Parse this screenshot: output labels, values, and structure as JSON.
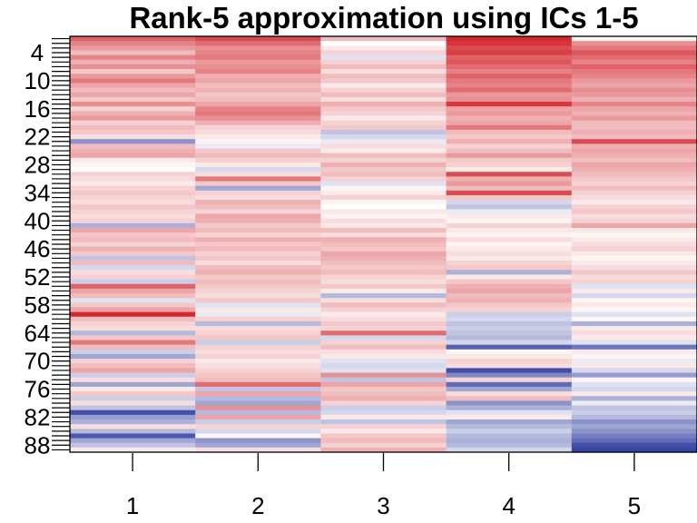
{
  "chart_data": {
    "type": "heatmap",
    "title": "Rank-5 approximation using ICs 1-5",
    "xlabel": "",
    "ylabel": "",
    "columns": [
      "1",
      "2",
      "3",
      "4",
      "5"
    ],
    "n_rows": 89,
    "row_tick_labels": [
      "4",
      "10",
      "16",
      "22",
      "28",
      "34",
      "40",
      "46",
      "52",
      "58",
      "64",
      "70",
      "76",
      "82",
      "88"
    ],
    "row_tick_values": [
      4,
      10,
      16,
      22,
      28,
      34,
      40,
      46,
      52,
      58,
      64,
      70,
      76,
      82,
      88
    ],
    "value_range": [
      -1,
      1
    ],
    "color_scale": {
      "low": "#2c3b9e",
      "mid": "#ffffff",
      "high": "#d11e26"
    },
    "grid": false,
    "legend": "none",
    "values": [
      [
        0.7,
        0.8,
        0.3,
        0.95,
        0.05
      ],
      [
        0.55,
        0.65,
        0.0,
        0.9,
        0.5
      ],
      [
        0.45,
        0.5,
        0.1,
        0.8,
        0.6
      ],
      [
        0.3,
        0.55,
        0.2,
        0.85,
        0.75
      ],
      [
        0.55,
        0.6,
        -0.15,
        0.7,
        0.65
      ],
      [
        0.35,
        0.45,
        0.2,
        0.75,
        0.55
      ],
      [
        0.5,
        0.5,
        0.3,
        0.65,
        0.7
      ],
      [
        0.25,
        0.55,
        0.15,
        0.55,
        0.6
      ],
      [
        0.45,
        0.35,
        0.3,
        0.7,
        0.55
      ],
      [
        0.6,
        0.4,
        0.25,
        0.6,
        0.45
      ],
      [
        0.4,
        0.3,
        0.1,
        0.55,
        0.4
      ],
      [
        0.3,
        0.35,
        0.2,
        0.65,
        0.5
      ],
      [
        0.4,
        0.25,
        0.3,
        0.45,
        0.45
      ],
      [
        0.25,
        0.3,
        0.15,
        0.5,
        0.35
      ],
      [
        0.5,
        0.4,
        0.35,
        0.9,
        0.55
      ],
      [
        0.2,
        0.55,
        0.25,
        0.4,
        0.4
      ],
      [
        0.35,
        0.6,
        0.2,
        0.45,
        0.35
      ],
      [
        0.45,
        0.5,
        0.1,
        0.35,
        0.45
      ],
      [
        0.2,
        0.35,
        0.2,
        0.4,
        0.3
      ],
      [
        0.3,
        0.2,
        0.25,
        0.6,
        0.3
      ],
      [
        0.25,
        0.15,
        -0.3,
        0.3,
        0.35
      ],
      [
        0.15,
        0.1,
        -0.2,
        0.25,
        0.3
      ],
      [
        -0.55,
        0.05,
        -0.1,
        0.35,
        0.8
      ],
      [
        0.3,
        -0.1,
        0.15,
        0.2,
        0.35
      ],
      [
        0.35,
        0.25,
        0.1,
        0.3,
        0.4
      ],
      [
        0.4,
        0.3,
        0.3,
        0.45,
        0.35
      ],
      [
        0.1,
        0.2,
        0.2,
        0.25,
        0.3
      ],
      [
        0.05,
        0.1,
        0.35,
        0.2,
        0.4
      ],
      [
        0.0,
        -0.2,
        0.25,
        0.1,
        0.35
      ],
      [
        0.2,
        0.15,
        0.3,
        0.8,
        0.3
      ],
      [
        0.15,
        0.6,
        0.2,
        0.35,
        0.25
      ],
      [
        0.1,
        0.25,
        -0.15,
        0.45,
        0.2
      ],
      [
        0.2,
        -0.45,
        0.05,
        0.3,
        0.3
      ],
      [
        0.25,
        0.2,
        0.1,
        0.8,
        0.2
      ],
      [
        0.2,
        0.15,
        0.2,
        0.25,
        0.15
      ],
      [
        0.15,
        0.35,
        0.05,
        -0.2,
        0.1
      ],
      [
        0.25,
        0.3,
        0.0,
        -0.3,
        0.2
      ],
      [
        0.2,
        0.2,
        0.1,
        -0.1,
        0.25
      ],
      [
        0.15,
        0.4,
        0.05,
        0.1,
        0.15
      ],
      [
        0.2,
        0.35,
        0.15,
        0.05,
        0.2
      ],
      [
        -0.4,
        0.25,
        0.1,
        0.2,
        0.4
      ],
      [
        0.4,
        0.3,
        0.3,
        0.1,
        0.1
      ],
      [
        0.25,
        0.2,
        0.15,
        0.05,
        0.05
      ],
      [
        0.3,
        0.35,
        0.35,
        0.15,
        0.1
      ],
      [
        0.2,
        0.25,
        0.3,
        0.05,
        0.15
      ],
      [
        0.35,
        0.3,
        0.25,
        0.1,
        0.2
      ],
      [
        0.25,
        0.2,
        0.4,
        0.15,
        0.1
      ],
      [
        -0.3,
        0.25,
        0.35,
        0.1,
        0.05
      ],
      [
        0.3,
        0.15,
        0.3,
        0.2,
        0.1
      ],
      [
        -0.2,
        0.3,
        0.25,
        0.25,
        0.15
      ],
      [
        0.15,
        0.35,
        0.3,
        -0.4,
        0.25
      ],
      [
        0.2,
        0.25,
        0.2,
        0.1,
        0.15
      ],
      [
        -0.25,
        0.3,
        0.15,
        0.25,
        0.2
      ],
      [
        0.7,
        0.25,
        0.25,
        0.35,
        -0.15
      ],
      [
        0.4,
        0.2,
        0.1,
        0.4,
        0.1
      ],
      [
        0.3,
        0.15,
        -0.35,
        0.3,
        -0.2
      ],
      [
        -0.15,
        0.25,
        0.15,
        0.35,
        0.05
      ],
      [
        0.25,
        -0.15,
        0.3,
        0.25,
        0.1
      ],
      [
        0.4,
        0.1,
        0.2,
        0.2,
        0.05
      ],
      [
        0.95,
        -0.1,
        0.1,
        -0.25,
        -0.15
      ],
      [
        0.3,
        0.2,
        0.15,
        -0.2,
        0.05
      ],
      [
        0.2,
        -0.35,
        0.25,
        -0.3,
        -0.4
      ],
      [
        0.15,
        0.15,
        0.2,
        -0.25,
        0.1
      ],
      [
        -0.35,
        0.2,
        0.65,
        -0.3,
        0.15
      ],
      [
        0.25,
        0.25,
        -0.2,
        -0.35,
        0.1
      ],
      [
        0.6,
        -0.25,
        0.2,
        -0.2,
        -0.15
      ],
      [
        0.3,
        0.2,
        0.3,
        -0.8,
        -0.7
      ],
      [
        -0.25,
        0.15,
        0.15,
        0.05,
        0.1
      ],
      [
        -0.45,
        0.2,
        0.1,
        0.1,
        0.05
      ],
      [
        0.2,
        0.1,
        -0.15,
        0.2,
        -0.1
      ],
      [
        0.3,
        0.15,
        -0.2,
        0.15,
        0.1
      ],
      [
        0.4,
        0.2,
        -0.15,
        -0.9,
        -0.2
      ],
      [
        -0.25,
        0.25,
        0.5,
        -0.6,
        -0.5
      ],
      [
        0.15,
        0.3,
        -0.3,
        0.2,
        0.05
      ],
      [
        -0.45,
        0.65,
        0.4,
        -0.75,
        -0.15
      ],
      [
        0.1,
        -0.3,
        0.25,
        -0.45,
        -0.2
      ],
      [
        0.25,
        0.4,
        0.3,
        0.15,
        0.1
      ],
      [
        -0.25,
        -0.35,
        0.35,
        0.3,
        -0.4
      ],
      [
        0.15,
        -0.45,
        0.2,
        -0.55,
        -0.1
      ],
      [
        -0.3,
        0.5,
        -0.25,
        -0.4,
        -0.3
      ],
      [
        -0.9,
        -0.35,
        -0.2,
        -0.15,
        -0.25
      ],
      [
        -0.5,
        0.4,
        0.1,
        0.1,
        -0.35
      ],
      [
        -0.4,
        -0.25,
        -0.3,
        -0.45,
        -0.55
      ],
      [
        0.15,
        0.2,
        0.2,
        -0.35,
        -0.45
      ],
      [
        -0.35,
        -0.2,
        0.1,
        -0.25,
        -0.55
      ],
      [
        -0.85,
        0.05,
        0.25,
        -0.35,
        -0.65
      ],
      [
        -0.45,
        -0.55,
        0.3,
        -0.4,
        -0.75
      ],
      [
        -0.3,
        -0.45,
        0.2,
        -0.35,
        -0.9
      ],
      [
        0.1,
        0.15,
        0.35,
        -0.2,
        -0.95
      ]
    ]
  }
}
